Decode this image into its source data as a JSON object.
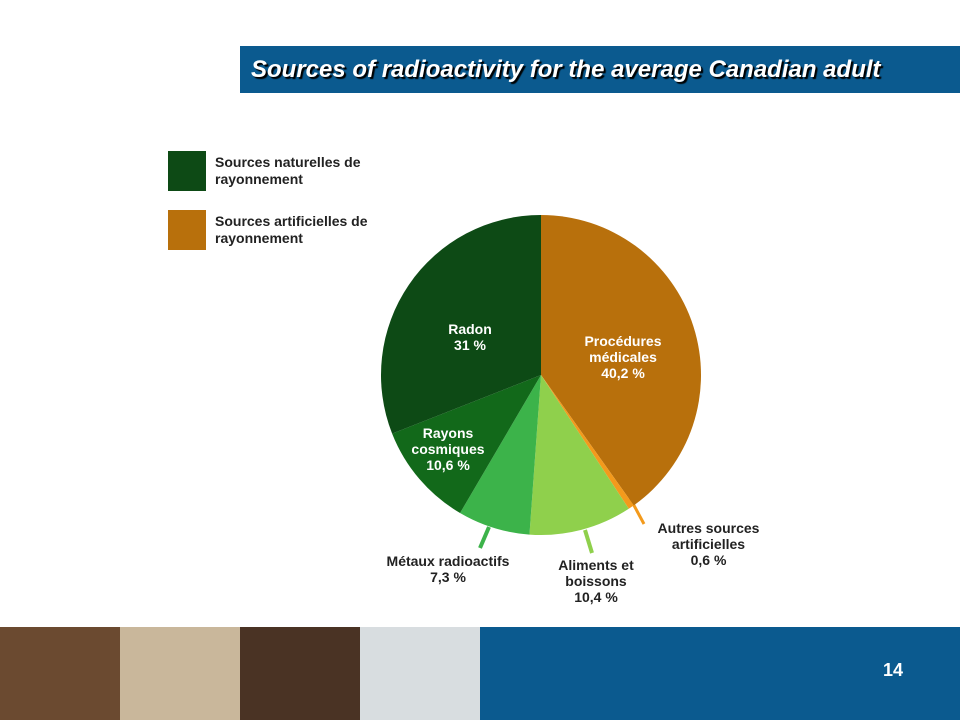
{
  "header": {
    "title": "Sources of radioactivity for the average Canadian adult"
  },
  "chart_data": {
    "type": "pie",
    "categories": [
      "Procédures médicales",
      "Autres sources artificielles",
      "Aliments et boissons",
      "Métaux radioactifs",
      "Rayons cosmiques",
      "Radon"
    ],
    "values": [
      40.2,
      0.6,
      10.4,
      7.3,
      10.6,
      31
    ],
    "value_labels": [
      "40,2 %",
      "0,6 %",
      "10,4 %",
      "7,3 %",
      "10,6 %",
      "31 %"
    ],
    "colors": [
      "#b8700c",
      "#f39a1c",
      "#8fd04c",
      "#3cb34a",
      "#12691a",
      "#0d4a15"
    ],
    "legend": [
      {
        "name": "Sources naturelles de rayonnement",
        "color": "#0d4a15"
      },
      {
        "name": "Sources artificielles de rayonnement",
        "color": "#b8700c"
      }
    ]
  },
  "footer": {
    "page_number": "14"
  }
}
